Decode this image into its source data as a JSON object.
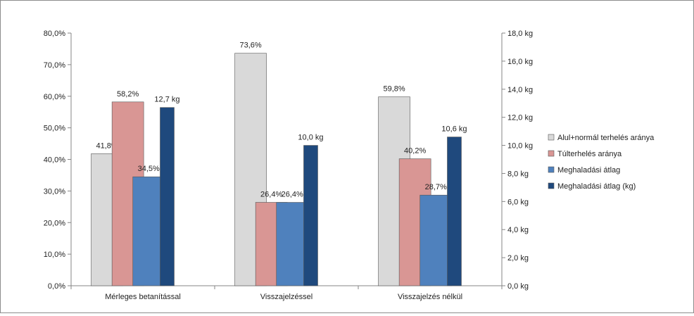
{
  "chart_data": {
    "type": "bar",
    "categories": [
      "Mérleges betanítással",
      "Visszajelzéssel",
      "Visszajelzés nélkül"
    ],
    "series": [
      {
        "name": "Alul+normál terhelés aránya",
        "axis": "left",
        "values": [
          41.8,
          73.6,
          59.8
        ],
        "labels": [
          "41,8%",
          "73,6%",
          "59,8%"
        ],
        "color": "#d9d9d9"
      },
      {
        "name": "Túlterhelés aránya",
        "axis": "left",
        "values": [
          58.2,
          26.4,
          40.2
        ],
        "labels": [
          "58,2%",
          "26,4%",
          "40,2%"
        ],
        "color": "#d99694"
      },
      {
        "name": "Meghaladási átlag",
        "axis": "left",
        "values": [
          34.5,
          26.4,
          28.7
        ],
        "labels": [
          "34,5%",
          "26,4%",
          "28,7%"
        ],
        "color": "#4f81bd"
      },
      {
        "name": "Meghaladási átlag (kg)",
        "axis": "right",
        "values": [
          12.7,
          10.0,
          10.6
        ],
        "labels": [
          "12,7 kg",
          "10,0 kg",
          "10,6 kg"
        ],
        "color": "#1f497d"
      }
    ],
    "y_left": {
      "min": 0,
      "max": 80,
      "ticks": [
        "0,0%",
        "10,0%",
        "20,0%",
        "30,0%",
        "40,0%",
        "50,0%",
        "60,0%",
        "70,0%",
        "80,0%"
      ]
    },
    "y_right": {
      "min": 0,
      "max": 18,
      "ticks": [
        "0,0 kg",
        "2,0 kg",
        "4,0 kg",
        "6,0 kg",
        "8,0 kg",
        "10,0 kg",
        "12,0 kg",
        "14,0 kg",
        "16,0 kg",
        "18,0 kg"
      ]
    },
    "grid": false,
    "legend": "right"
  }
}
